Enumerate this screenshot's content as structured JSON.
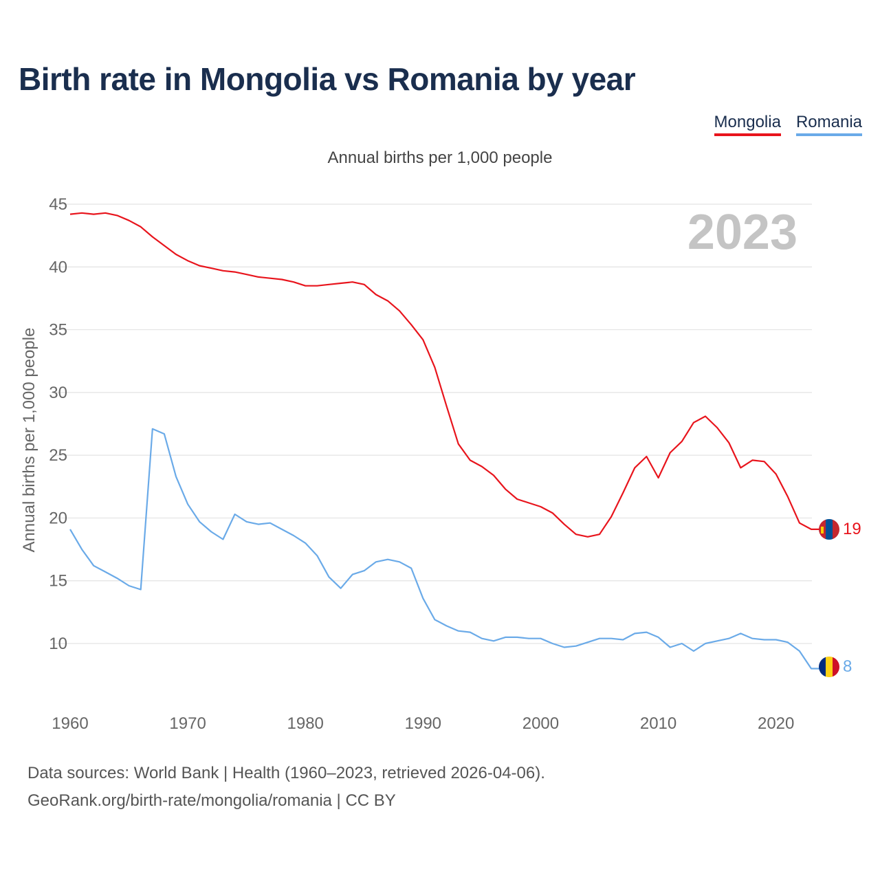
{
  "title": "Birth rate in Mongolia vs Romania by year",
  "legend": [
    {
      "name": "Mongolia",
      "color": "#e8141c"
    },
    {
      "name": "Romania",
      "color": "#6aaae8"
    }
  ],
  "subtitle": "Annual births per 1,000 people",
  "year_label": "2023",
  "footer": {
    "line1": "Data sources: World Bank | Health (1960–2023, retrieved 2026-04-06).",
    "line2": "GeoRank.org/birth-rate/mongolia/romania | CC BY"
  },
  "chart_data": {
    "type": "line",
    "title": "Birth rate in Mongolia vs Romania by year",
    "ylabel": "Annual births per 1,000 people",
    "xlabel": "",
    "xlim": [
      1960,
      2023
    ],
    "ylim": [
      6.5,
      45
    ],
    "yticks": [
      10,
      15,
      20,
      25,
      30,
      35,
      40,
      45
    ],
    "xticks": [
      1960,
      1970,
      1980,
      1990,
      2000,
      2010,
      2020
    ],
    "grid": true,
    "x": [
      1960,
      1961,
      1962,
      1963,
      1964,
      1965,
      1966,
      1967,
      1968,
      1969,
      1970,
      1971,
      1972,
      1973,
      1974,
      1975,
      1976,
      1977,
      1978,
      1979,
      1980,
      1981,
      1982,
      1983,
      1984,
      1985,
      1986,
      1987,
      1988,
      1989,
      1990,
      1991,
      1992,
      1993,
      1994,
      1995,
      1996,
      1997,
      1998,
      1999,
      2000,
      2001,
      2002,
      2003,
      2004,
      2005,
      2006,
      2007,
      2008,
      2009,
      2010,
      2011,
      2012,
      2013,
      2014,
      2015,
      2016,
      2017,
      2018,
      2019,
      2020,
      2021,
      2022,
      2023
    ],
    "series": [
      {
        "name": "Mongolia",
        "color": "#e8141c",
        "end_label": "19",
        "values": [
          44.2,
          44.3,
          44.2,
          44.3,
          44.1,
          43.7,
          43.2,
          42.4,
          41.7,
          41.0,
          40.5,
          40.1,
          39.9,
          39.7,
          39.6,
          39.4,
          39.2,
          39.1,
          39.0,
          38.8,
          38.5,
          38.5,
          38.6,
          38.7,
          38.8,
          38.6,
          37.8,
          37.3,
          36.5,
          35.4,
          34.2,
          32.0,
          28.9,
          25.9,
          24.6,
          24.1,
          23.4,
          22.3,
          21.5,
          21.2,
          20.9,
          20.4,
          19.5,
          18.7,
          18.5,
          18.7,
          20.1,
          22.0,
          24.0,
          24.9,
          23.2,
          25.2,
          26.1,
          27.6,
          28.1,
          27.2,
          26.0,
          24.0,
          24.6,
          24.5,
          23.5,
          21.7,
          19.6,
          19.1
        ]
      },
      {
        "name": "Romania",
        "color": "#6aaae8",
        "end_label": "8",
        "values": [
          19.1,
          17.5,
          16.2,
          15.7,
          15.2,
          14.6,
          14.3,
          27.1,
          26.7,
          23.3,
          21.1,
          19.7,
          18.9,
          18.3,
          20.3,
          19.7,
          19.5,
          19.6,
          19.1,
          18.6,
          18.0,
          17.0,
          15.3,
          14.4,
          15.5,
          15.8,
          16.5,
          16.7,
          16.5,
          16.0,
          13.6,
          11.9,
          11.4,
          11.0,
          10.9,
          10.4,
          10.2,
          10.5,
          10.5,
          10.4,
          10.4,
          10.0,
          9.7,
          9.8,
          10.1,
          10.4,
          10.4,
          10.3,
          10.8,
          10.9,
          10.5,
          9.7,
          10.0,
          9.4,
          10.0,
          10.2,
          10.4,
          10.8,
          10.4,
          10.3,
          10.3,
          10.1,
          9.4,
          8.0
        ]
      }
    ]
  }
}
